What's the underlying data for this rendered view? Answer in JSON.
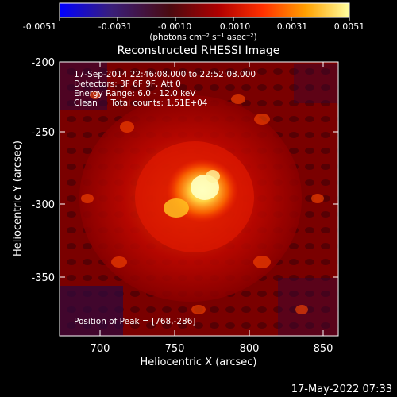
{
  "colorbar": {
    "ticks": [
      "-0.0051",
      "-0.0031",
      "-0.0010",
      "0.0010",
      "0.0031",
      "0.0051"
    ],
    "unit_label": "(photons cm⁻² s⁻¹ asec⁻²)",
    "colors": [
      "#0000ff",
      "#3a1f7a",
      "#5a1010",
      "#b00000",
      "#ff3000",
      "#ffa000",
      "#ffff80"
    ]
  },
  "chart_data": {
    "type": "heatmap",
    "title": "Reconstructed RHESSI Image",
    "xlabel": "Heliocentric X (arcsec)",
    "ylabel": "Heliocentric Y (arcsec)",
    "xlim": [
      668,
      862
    ],
    "ylim": [
      -393,
      -199
    ],
    "x_ticks": [
      "700",
      "750",
      "800",
      "850"
    ],
    "y_ticks": [
      "-200",
      "-250",
      "-300",
      "-350"
    ],
    "peak": [
      768,
      -286
    ],
    "annotations": [
      "17-Sep-2014 22:46:08.000 to 22:52:08.000",
      "Detectors: 3F 6F 9F, Att 0",
      "Energy Range: 6.0 - 12.0 keV",
      "Clean     Total counts: 1.51E+04"
    ],
    "peak_label": "Position of Peak = [768,-286]"
  },
  "footer": {
    "timestamp": "17-May-2022 07:33"
  }
}
